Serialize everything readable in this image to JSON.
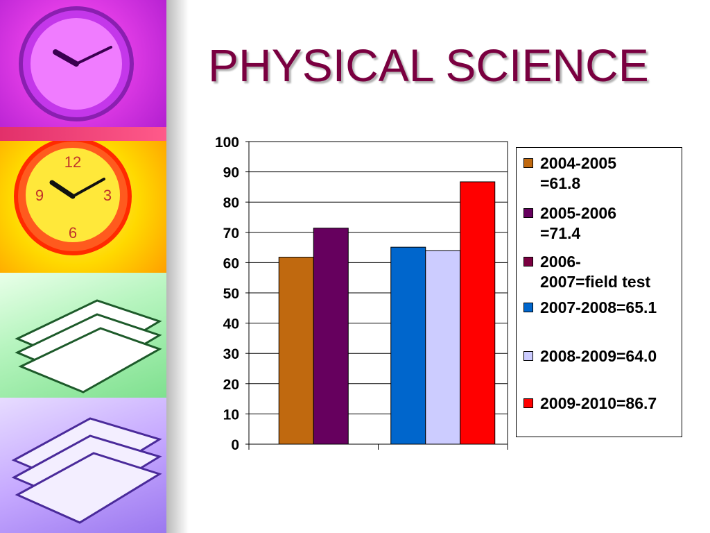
{
  "slide": {
    "title": "PHYSICAL SCIENCE",
    "decorative_panels": [
      "clock-icon",
      "clock-icon",
      "book-stack-icon",
      "book-stack-icon"
    ]
  },
  "chart_data": {
    "type": "bar",
    "ylim": [
      0,
      100
    ],
    "yticks": [
      "0",
      "10",
      "20",
      "30",
      "40",
      "50",
      "60",
      "70",
      "80",
      "90",
      "100"
    ],
    "grid": true,
    "legend_position": "right",
    "groups": [
      {
        "bars": [
          {
            "series": "2004-2005 =61.8",
            "value": 61.8,
            "color": "#c0690f"
          },
          {
            "series": "2005-2006 =71.4",
            "value": 71.4,
            "color": "#66005e"
          }
        ]
      },
      {
        "bars": [
          {
            "series": "2007-2008=65.1",
            "value": 65.1,
            "color": "#0066cc"
          },
          {
            "series": "2008-2009=64.0",
            "value": 64.0,
            "color": "#ccccff"
          },
          {
            "series": "2009-2010=86.7",
            "value": 86.7,
            "color": "#ff0000"
          }
        ]
      }
    ],
    "legend": [
      {
        "label": "2004-2005\n=61.8",
        "color": "#c0690f"
      },
      {
        "label": "2005-2006\n=71.4",
        "color": "#66005e"
      },
      {
        "label": "2006-\n2007=field test",
        "color": "#7a0040"
      },
      {
        "label": "2007-2008=65.1",
        "color": "#0066cc"
      },
      {
        "label": "2008-2009=64.0",
        "color": "#ccccff"
      },
      {
        "label": "2009-2010=86.7",
        "color": "#ff0000"
      }
    ]
  }
}
